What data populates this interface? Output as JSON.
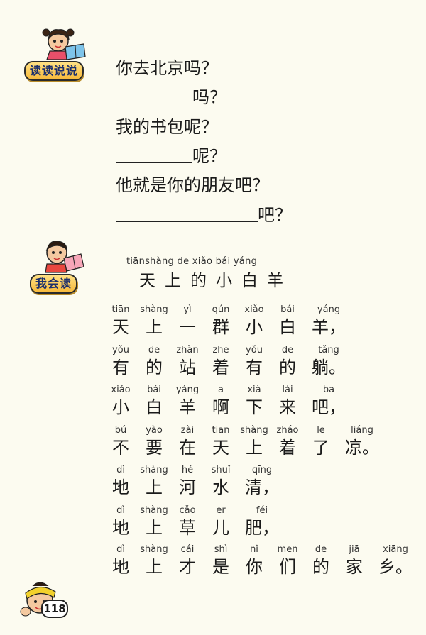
{
  "sections": {
    "read_say": {
      "label": "读读说说"
    },
    "i_can_read": {
      "label": "我会读"
    }
  },
  "read_say_lines": [
    "你去北京吗？",
    "吗？",
    "我的书包呢？",
    "呢？",
    "他就是你的朋友吧？",
    "吧？"
  ],
  "poem": {
    "title_pinyin": "tiānshàng de  xiǎo  bái  yáng",
    "title": "天上的小白羊",
    "lines": [
      {
        "chars": [
          "天",
          "上",
          "一",
          "群",
          "小",
          "白",
          "羊"
        ],
        "pinyin": [
          "tiān",
          "shàng",
          "yì",
          "qún",
          "xiǎo",
          "bái",
          "yáng"
        ],
        "punct": "，"
      },
      {
        "chars": [
          "有",
          "的",
          "站",
          "着",
          "有",
          "的",
          "躺"
        ],
        "pinyin": [
          "yǒu",
          "de",
          "zhàn",
          "zhe",
          "yǒu",
          "de",
          "tǎng"
        ],
        "punct": "。"
      },
      {
        "chars": [
          "小",
          "白",
          "羊",
          "啊",
          "下",
          "来",
          "吧"
        ],
        "pinyin": [
          "xiǎo",
          "bái",
          "yáng",
          "a",
          "xià",
          "lái",
          "ba"
        ],
        "punct": "，"
      },
      {
        "chars": [
          "不",
          "要",
          "在",
          "天",
          "上",
          "着",
          "了",
          "凉"
        ],
        "pinyin": [
          "bú",
          "yào",
          "zài",
          "tiān",
          "shàng",
          "zháo",
          "le",
          "liáng"
        ],
        "punct": "。"
      },
      {
        "chars": [
          "地",
          "上",
          "河",
          "水",
          "清"
        ],
        "pinyin": [
          "dì",
          "shàng",
          "hé",
          "shuǐ",
          "qīng"
        ],
        "punct": "，"
      },
      {
        "chars": [
          "地",
          "上",
          "草",
          "儿",
          "肥"
        ],
        "pinyin": [
          "dì",
          "shàng",
          "cǎo",
          "er",
          "féi"
        ],
        "punct": "，"
      },
      {
        "chars": [
          "地",
          "上",
          "才",
          "是",
          "你",
          "们",
          "的",
          "家",
          "乡"
        ],
        "pinyin": [
          "dì",
          "shàng",
          "cái",
          "shì",
          "nǐ",
          "men",
          "de",
          "jiā",
          "xiāng"
        ],
        "punct": "。"
      }
    ]
  },
  "page": {
    "number": "118"
  },
  "icons": [
    "girl-reading-icon",
    "boy-reading-icon",
    "boy-headband-icon"
  ]
}
